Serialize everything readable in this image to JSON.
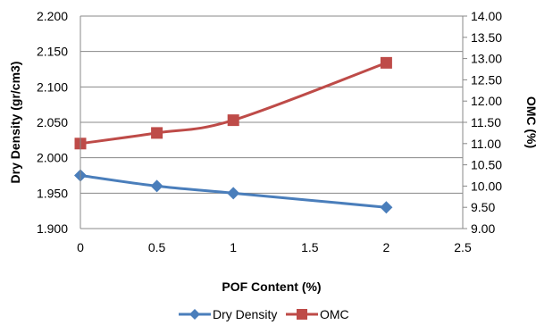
{
  "chart_data": {
    "type": "line",
    "title": "",
    "xlabel": "POF Content (%)",
    "ylabel": "Dry Density (gr/cm3)",
    "y2label": "OMC (%)",
    "xlim": [
      0,
      2.5
    ],
    "ylim": [
      1.9,
      2.2
    ],
    "y2lim": [
      9.0,
      14.0
    ],
    "x_ticks": [
      "0",
      "0.5",
      "1",
      "1.5",
      "2",
      "2.5"
    ],
    "y_ticks": [
      "1.900",
      "1.950",
      "2.000",
      "2.050",
      "2.100",
      "2.150",
      "2.200"
    ],
    "y2_ticks": [
      "9.00",
      "9.50",
      "10.00",
      "10.50",
      "11.00",
      "11.50",
      "12.00",
      "12.50",
      "13.00",
      "13.50",
      "14.00"
    ],
    "grid": "horizontal",
    "legend": "bottom",
    "series": [
      {
        "name": "Dry Density",
        "axis": "left",
        "color": "#4A7EBB",
        "marker": "diamond",
        "x": [
          0,
          0.5,
          1,
          2
        ],
        "values": [
          1.975,
          1.96,
          1.95,
          1.93
        ]
      },
      {
        "name": "OMC",
        "axis": "right",
        "color": "#BE4B48",
        "marker": "square",
        "x": [
          0,
          0.5,
          1,
          2
        ],
        "values": [
          11.0,
          11.25,
          11.55,
          12.9
        ]
      }
    ]
  }
}
